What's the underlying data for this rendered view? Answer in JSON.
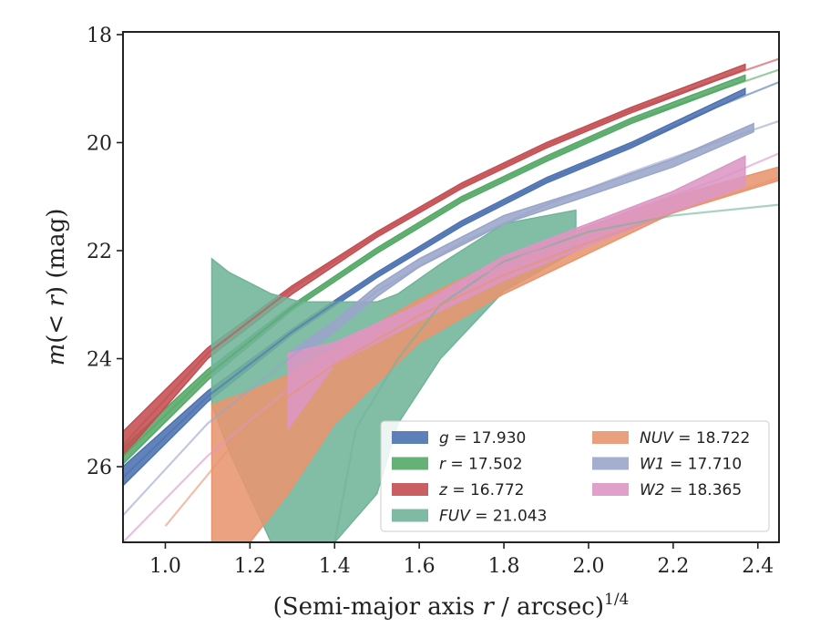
{
  "chart_data": {
    "type": "line",
    "xlabel": "(Semi-major axis r / arcsec)^{1/4}",
    "ylabel": "m(< r) (mag)",
    "xlim": [
      0.9,
      2.45
    ],
    "ylim": [
      27.4,
      17.95
    ],
    "y_inverted": true,
    "xticks": [
      1.0,
      1.2,
      1.4,
      1.6,
      1.8,
      2.0,
      2.2,
      2.4
    ],
    "yticks": [
      18,
      20,
      22,
      24,
      26
    ],
    "grid": false,
    "legend_placement": "lower-right",
    "series": [
      {
        "name": "g = 17.930",
        "label_var": "g",
        "label_val": "17.930",
        "color": "#4c72b0",
        "band": {
          "x": [
            0.9,
            1.1,
            1.3,
            1.5,
            1.7,
            1.9,
            2.1,
            2.37
          ],
          "lo": [
            26.0,
            24.6,
            23.45,
            22.4,
            21.45,
            20.65,
            20.0,
            19.0
          ],
          "hi": [
            26.35,
            24.8,
            23.55,
            22.5,
            21.55,
            20.75,
            20.1,
            19.1
          ]
        },
        "fit": {
          "x": [
            0.9,
            1.1,
            1.3,
            1.5,
            1.7,
            1.9,
            2.1,
            2.3,
            2.45
          ],
          "y": [
            26.2,
            24.7,
            23.5,
            22.45,
            21.5,
            20.7,
            20.05,
            19.35,
            18.88
          ]
        }
      },
      {
        "name": "r = 17.502",
        "label_var": "r",
        "label_val": "17.502",
        "color": "#55a868",
        "band": {
          "x": [
            0.9,
            1.1,
            1.3,
            1.5,
            1.7,
            1.9,
            2.1,
            2.37
          ],
          "lo": [
            25.65,
            24.2,
            23.0,
            21.95,
            21.0,
            20.25,
            19.55,
            18.75
          ],
          "hi": [
            25.95,
            24.4,
            23.1,
            22.05,
            21.1,
            20.35,
            19.65,
            18.85
          ]
        },
        "fit": {
          "x": [
            0.9,
            1.1,
            1.3,
            1.5,
            1.7,
            1.9,
            2.1,
            2.3,
            2.45
          ],
          "y": [
            25.8,
            24.3,
            23.05,
            22.0,
            21.05,
            20.3,
            19.6,
            19.05,
            18.65
          ]
        }
      },
      {
        "name": "z = 16.772",
        "label_var": "z",
        "label_val": "16.772",
        "color": "#c44e52",
        "band": {
          "x": [
            0.9,
            1.1,
            1.3,
            1.5,
            1.7,
            1.9,
            2.1,
            2.37
          ],
          "lo": [
            25.35,
            23.8,
            22.65,
            21.65,
            20.75,
            20.0,
            19.35,
            18.55
          ],
          "hi": [
            25.8,
            24.0,
            22.8,
            21.75,
            20.85,
            20.1,
            19.45,
            18.65
          ]
        },
        "fit": {
          "x": [
            0.9,
            1.1,
            1.3,
            1.5,
            1.7,
            1.9,
            2.1,
            2.3,
            2.45
          ],
          "y": [
            25.6,
            23.9,
            22.7,
            21.7,
            20.8,
            20.05,
            19.4,
            18.85,
            18.45
          ]
        }
      },
      {
        "name": "FUV = 21.043",
        "label_var": "FUV",
        "label_val": "21.043",
        "color": "#71b49a",
        "band": {
          "x": [
            1.11,
            1.15,
            1.25,
            1.32,
            1.4,
            1.5,
            1.55,
            1.65,
            1.8,
            1.97
          ],
          "lo": [
            22.15,
            22.4,
            22.8,
            22.95,
            22.95,
            22.95,
            22.8,
            22.25,
            21.5,
            21.25
          ],
          "hi": [
            24.85,
            25.7,
            27.4,
            27.4,
            27.4,
            26.5,
            25.2,
            24.0,
            22.75,
            22.0
          ]
        },
        "fit": {
          "x": [
            1.4,
            1.45,
            1.55,
            1.65,
            1.8,
            2.0,
            2.2,
            2.45
          ],
          "y": [
            27.4,
            25.3,
            24.0,
            23.0,
            22.2,
            21.65,
            21.35,
            21.15
          ]
        }
      },
      {
        "name": "NUV = 18.722",
        "label_var": "NUV",
        "label_val": "18.722",
        "color": "#e8956f",
        "band": {
          "x": [
            1.11,
            1.2,
            1.29,
            1.4,
            1.6,
            1.8,
            2.0,
            2.2,
            2.45
          ],
          "lo": [
            24.85,
            24.6,
            24.3,
            23.8,
            22.9,
            22.15,
            21.55,
            21.0,
            20.45
          ],
          "hi": [
            27.4,
            27.4,
            26.5,
            25.2,
            23.7,
            22.8,
            22.05,
            21.3,
            20.7
          ]
        },
        "fit": {
          "x": [
            1.0,
            1.2,
            1.4,
            1.6,
            1.8,
            2.0,
            2.2,
            2.45
          ],
          "y": [
            27.1,
            25.2,
            24.1,
            23.2,
            22.45,
            21.85,
            21.3,
            20.65
          ]
        }
      },
      {
        "name": "W1 = 17.710",
        "label_var": "W1",
        "label_val": "17.710",
        "color": "#9aa5c9",
        "band": {
          "x": [
            1.29,
            1.4,
            1.5,
            1.6,
            1.7,
            1.8,
            2.0,
            2.2,
            2.39
          ],
          "lo": [
            23.9,
            23.3,
            22.65,
            22.15,
            21.75,
            21.35,
            20.85,
            20.3,
            19.65
          ],
          "hi": [
            24.15,
            23.5,
            22.85,
            22.3,
            21.9,
            21.5,
            20.98,
            20.45,
            19.8
          ]
        },
        "fit": {
          "x": [
            0.9,
            1.1,
            1.3,
            1.5,
            1.7,
            1.9,
            2.1,
            2.3,
            2.45
          ],
          "y": [
            26.9,
            25.2,
            23.95,
            22.75,
            21.85,
            21.15,
            20.55,
            20.0,
            19.6
          ]
        }
      },
      {
        "name": "W2 = 18.365",
        "label_var": "W2",
        "label_val": "18.365",
        "color": "#dc96c4",
        "band": {
          "x": [
            1.29,
            1.4,
            1.6,
            1.8,
            2.0,
            2.2,
            2.37
          ],
          "lo": [
            23.9,
            23.7,
            23.0,
            22.1,
            21.5,
            20.9,
            20.25
          ],
          "hi": [
            25.3,
            24.1,
            23.3,
            22.55,
            21.9,
            21.3,
            20.8
          ]
        },
        "fit": {
          "x": [
            0.9,
            1.1,
            1.3,
            1.5,
            1.7,
            1.9,
            2.1,
            2.3,
            2.45
          ],
          "y": [
            27.4,
            25.8,
            24.5,
            23.4,
            22.6,
            21.9,
            21.25,
            20.7,
            20.2
          ]
        }
      }
    ],
    "legend_columns": [
      [
        "g",
        "r",
        "z",
        "FUV"
      ],
      [
        "NUV",
        "W1",
        "W2"
      ]
    ]
  }
}
